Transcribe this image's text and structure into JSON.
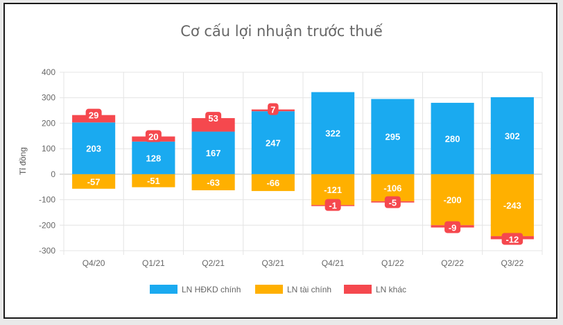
{
  "chart_data": {
    "type": "bar",
    "stacked": true,
    "title": "Cơ cấu lợi nhuận trước thuế",
    "ylabel": "Tỉ đồng",
    "xlabel": "",
    "ylim": [
      -300,
      400
    ],
    "yticks": [
      400,
      300,
      200,
      100,
      0,
      -100,
      -200,
      -300
    ],
    "grid": true,
    "legend_position": "bottom",
    "categories": [
      "Q4/20",
      "Q1/21",
      "Q2/21",
      "Q3/21",
      "Q4/21",
      "Q1/22",
      "Q2/22",
      "Q3/22"
    ],
    "series": [
      {
        "name": "LN HĐKD chính",
        "color": "#1aaaf0",
        "values": [
          203,
          128,
          167,
          247,
          322,
          295,
          280,
          302
        ]
      },
      {
        "name": "LN tài chính",
        "color": "#ffb000",
        "values": [
          -57,
          -51,
          -63,
          -66,
          -121,
          -106,
          -200,
          -243
        ]
      },
      {
        "name": "LN khác",
        "color": "#f5484e",
        "values": [
          29,
          20,
          53,
          7,
          -1,
          -5,
          -9,
          -12
        ]
      }
    ]
  }
}
